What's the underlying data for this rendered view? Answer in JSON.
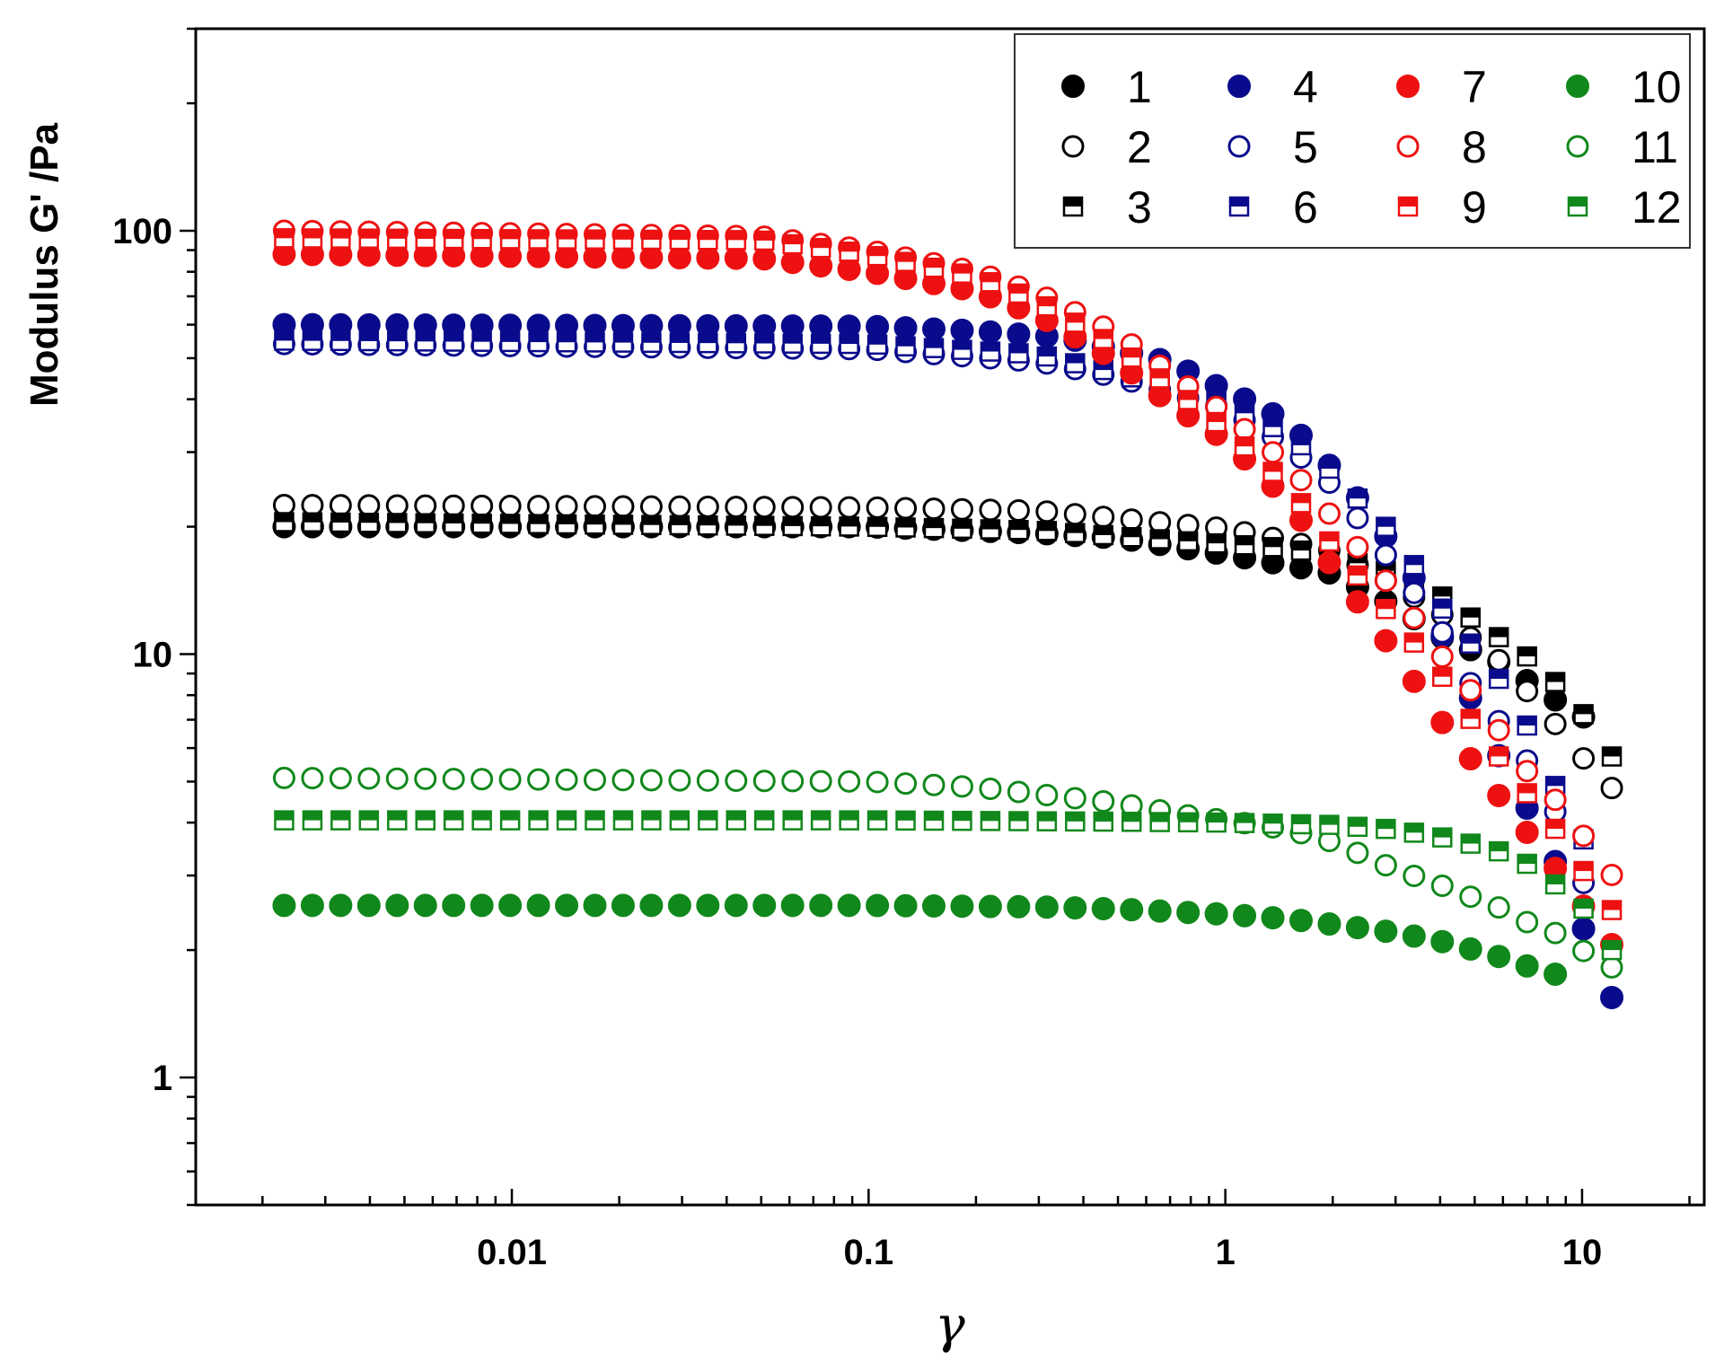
{
  "chart_data": {
    "type": "scatter",
    "title": "",
    "xlabel": "γ",
    "ylabel": "Modulus G' /Pa",
    "xscale": "log",
    "yscale": "log",
    "xlim": [
      0.0013,
      22
    ],
    "ylim": [
      0.5,
      300
    ],
    "x_ticks": [
      {
        "value": 0.01,
        "label": "0.01"
      },
      {
        "value": 0.1,
        "label": "0.1"
      },
      {
        "value": 1,
        "label": "1"
      },
      {
        "value": 10,
        "label": "10"
      }
    ],
    "y_ticks": [
      {
        "value": 1,
        "label": "1"
      },
      {
        "value": 10,
        "label": "10"
      },
      {
        "value": 100,
        "label": "100"
      }
    ],
    "legend_position": "top-right",
    "legend_columns": 4,
    "colors": {
      "black": "#000000",
      "blue": "#0a0a8c",
      "red": "#ee1111",
      "green": "#11881b"
    },
    "sweep": {
      "x_start": 0.0023,
      "x_factor": 1.2,
      "points": 50
    },
    "series": [
      {
        "name": "1",
        "color": "#000000",
        "marker": "filled-circle",
        "x_start": 0.0023,
        "x_end": 10.4,
        "y_keypoints": [
          [
            0.0023,
            20
          ],
          [
            0.1,
            20
          ],
          [
            0.3,
            19.3
          ],
          [
            0.5,
            18.8
          ],
          [
            1,
            17.2
          ],
          [
            1.5,
            16.2
          ],
          [
            2,
            15.5
          ],
          [
            2.5,
            14
          ],
          [
            3,
            13
          ],
          [
            4,
            11
          ],
          [
            6,
            9.5
          ],
          [
            8,
            8
          ],
          [
            10.4,
            7
          ]
        ]
      },
      {
        "name": "2",
        "color": "#000000",
        "marker": "open-circle",
        "x_start": 0.0023,
        "x_end": 12.5,
        "y_keypoints": [
          [
            0.0023,
            22.5
          ],
          [
            0.1,
            22.2
          ],
          [
            0.3,
            21.8
          ],
          [
            1,
            19.8
          ],
          [
            1.5,
            18.5
          ],
          [
            2,
            17.5
          ],
          [
            3,
            14.5
          ],
          [
            4,
            12.5
          ],
          [
            6,
            9.5
          ],
          [
            8,
            7.2
          ],
          [
            10.4,
            5.5
          ],
          [
            12.5,
            4.7
          ]
        ]
      },
      {
        "name": "3",
        "color": "#000000",
        "marker": "half-square",
        "x_start": 0.0023,
        "x_end": 12.5,
        "y_keypoints": [
          [
            0.0023,
            20.5
          ],
          [
            0.1,
            20
          ],
          [
            0.3,
            19.6
          ],
          [
            1,
            18.2
          ],
          [
            1.5,
            17.8
          ],
          [
            2,
            17
          ],
          [
            3,
            15.5
          ],
          [
            4,
            13.8
          ],
          [
            5,
            12
          ],
          [
            6,
            10.8
          ],
          [
            7.5,
            9.5
          ],
          [
            9,
            8.1
          ],
          [
            10.4,
            7
          ],
          [
            12.5,
            5.5
          ]
        ]
      },
      {
        "name": "4",
        "color": "#0a0a8c",
        "marker": "filled-circle",
        "x_start": 0.0023,
        "x_end": 12.5,
        "y_keypoints": [
          [
            0.0023,
            60
          ],
          [
            0.1,
            59.5
          ],
          [
            0.2,
            58
          ],
          [
            0.35,
            56
          ],
          [
            0.7,
            49
          ],
          [
            1,
            42
          ],
          [
            1.3,
            38
          ],
          [
            1.7,
            32
          ],
          [
            2.5,
            22
          ],
          [
            3.5,
            14.5
          ],
          [
            5,
            7.5
          ],
          [
            6,
            5.5
          ],
          [
            7.5,
            3.9
          ],
          [
            9,
            2.9
          ],
          [
            10.4,
            2.1
          ],
          [
            12.5,
            1.45
          ]
        ]
      },
      {
        "name": "5",
        "color": "#0a0a8c",
        "marker": "open-circle",
        "x_start": 0.0023,
        "x_end": 12.5,
        "y_keypoints": [
          [
            0.0023,
            54
          ],
          [
            0.1,
            52.5
          ],
          [
            0.3,
            49
          ],
          [
            0.5,
            45
          ],
          [
            1,
            38
          ],
          [
            1.5,
            31
          ],
          [
            2,
            25
          ],
          [
            3,
            16
          ],
          [
            4,
            11.5
          ],
          [
            5,
            8.2
          ],
          [
            6.5,
            6.2
          ],
          [
            8,
            4.7
          ],
          [
            9,
            3.7
          ],
          [
            10.4,
            2.7
          ],
          [
            12.5,
            1.95
          ]
        ]
      },
      {
        "name": "6",
        "color": "#0a0a8c",
        "marker": "half-square",
        "x_start": 0.0023,
        "x_end": 11.5,
        "y_keypoints": [
          [
            0.0023,
            55
          ],
          [
            0.1,
            54
          ],
          [
            0.3,
            51
          ],
          [
            0.5,
            46
          ],
          [
            1,
            39
          ],
          [
            1.5,
            33
          ],
          [
            2,
            27
          ],
          [
            2.5,
            22
          ],
          [
            3,
            19
          ],
          [
            4,
            13
          ],
          [
            5,
            10.3
          ],
          [
            6,
            8.5
          ],
          [
            7,
            6.8
          ],
          [
            8,
            5.3
          ],
          [
            9.5,
            4
          ],
          [
            11.5,
            3
          ]
        ]
      },
      {
        "name": "7",
        "color": "#ee1111",
        "marker": "filled-circle",
        "x_start": 0.0023,
        "x_end": 13,
        "y_keypoints": [
          [
            0.0023,
            88
          ],
          [
            0.05,
            86
          ],
          [
            0.1,
            80
          ],
          [
            0.2,
            72
          ],
          [
            0.3,
            63
          ],
          [
            0.5,
            49
          ],
          [
            0.7,
            39
          ],
          [
            1,
            32
          ],
          [
            1.5,
            23
          ],
          [
            2,
            16
          ],
          [
            3,
            10
          ],
          [
            4,
            7
          ],
          [
            5,
            5.5
          ],
          [
            7,
            3.8
          ],
          [
            9,
            2.9
          ],
          [
            11,
            2.3
          ],
          [
            13,
            1.9
          ]
        ]
      },
      {
        "name": "8",
        "color": "#ee1111",
        "marker": "open-circle",
        "x_start": 0.0023,
        "x_end": 12.5,
        "y_keypoints": [
          [
            0.0023,
            100
          ],
          [
            0.05,
            97
          ],
          [
            0.1,
            90
          ],
          [
            0.2,
            80
          ],
          [
            0.3,
            71
          ],
          [
            0.5,
            57
          ],
          [
            0.7,
            46
          ],
          [
            1,
            37
          ],
          [
            1.5,
            28
          ],
          [
            2,
            21
          ],
          [
            3,
            14
          ],
          [
            4,
            10
          ],
          [
            5,
            8
          ],
          [
            7,
            5.3
          ],
          [
            8.7,
            4.4
          ],
          [
            10.4,
            3.6
          ],
          [
            12.5,
            2.9
          ]
        ]
      },
      {
        "name": "9",
        "color": "#ee1111",
        "marker": "half-square",
        "x_start": 0.0023,
        "x_end": 12.5,
        "y_keypoints": [
          [
            0.0023,
            96
          ],
          [
            0.05,
            95
          ],
          [
            0.1,
            88
          ],
          [
            0.2,
            78
          ],
          [
            0.3,
            68
          ],
          [
            0.5,
            53
          ],
          [
            0.7,
            43
          ],
          [
            1,
            34
          ],
          [
            1.5,
            25
          ],
          [
            2,
            18
          ],
          [
            3,
            12
          ],
          [
            4,
            9
          ],
          [
            5,
            6.8
          ],
          [
            7,
            4.7
          ],
          [
            9,
            3.6
          ],
          [
            10.4,
            2.95
          ],
          [
            12.5,
            2.4
          ]
        ]
      },
      {
        "name": "10",
        "color": "#11881b",
        "marker": "filled-circle",
        "x_start": 0.0023,
        "x_end": 8.7,
        "y_keypoints": [
          [
            0.0023,
            2.55
          ],
          [
            0.1,
            2.55
          ],
          [
            0.3,
            2.53
          ],
          [
            0.5,
            2.5
          ],
          [
            1,
            2.43
          ],
          [
            1.5,
            2.37
          ],
          [
            2,
            2.3
          ],
          [
            3,
            2.2
          ],
          [
            4,
            2.1
          ],
          [
            5,
            2
          ],
          [
            6,
            1.92
          ],
          [
            7.2,
            1.82
          ],
          [
            8.7,
            1.74
          ]
        ]
      },
      {
        "name": "11",
        "color": "#11881b",
        "marker": "open-circle",
        "x_start": 0.0023,
        "x_end": 12,
        "y_keypoints": [
          [
            0.0023,
            5.1
          ],
          [
            0.1,
            5
          ],
          [
            0.2,
            4.85
          ],
          [
            0.5,
            4.45
          ],
          [
            0.8,
            4.15
          ],
          [
            1,
            4.05
          ],
          [
            1.5,
            3.85
          ],
          [
            2,
            3.6
          ],
          [
            3,
            3.1
          ],
          [
            4,
            2.85
          ],
          [
            5,
            2.65
          ],
          [
            6,
            2.5
          ],
          [
            7.2,
            2.3
          ],
          [
            9,
            2.15
          ],
          [
            10,
            2
          ],
          [
            12,
            1.82
          ]
        ]
      },
      {
        "name": "12",
        "color": "#11881b",
        "marker": "half-square",
        "x_start": 0.0023,
        "x_end": 12,
        "y_keypoints": [
          [
            0.0023,
            4.05
          ],
          [
            0.1,
            4.05
          ],
          [
            0.5,
            4.02
          ],
          [
            1,
            4
          ],
          [
            2,
            3.95
          ],
          [
            3,
            3.85
          ],
          [
            4,
            3.7
          ],
          [
            5,
            3.55
          ],
          [
            6,
            3.4
          ],
          [
            7,
            3.2
          ],
          [
            8.7,
            2.8
          ],
          [
            10.4,
            2.45
          ],
          [
            12,
            2
          ]
        ]
      }
    ]
  }
}
